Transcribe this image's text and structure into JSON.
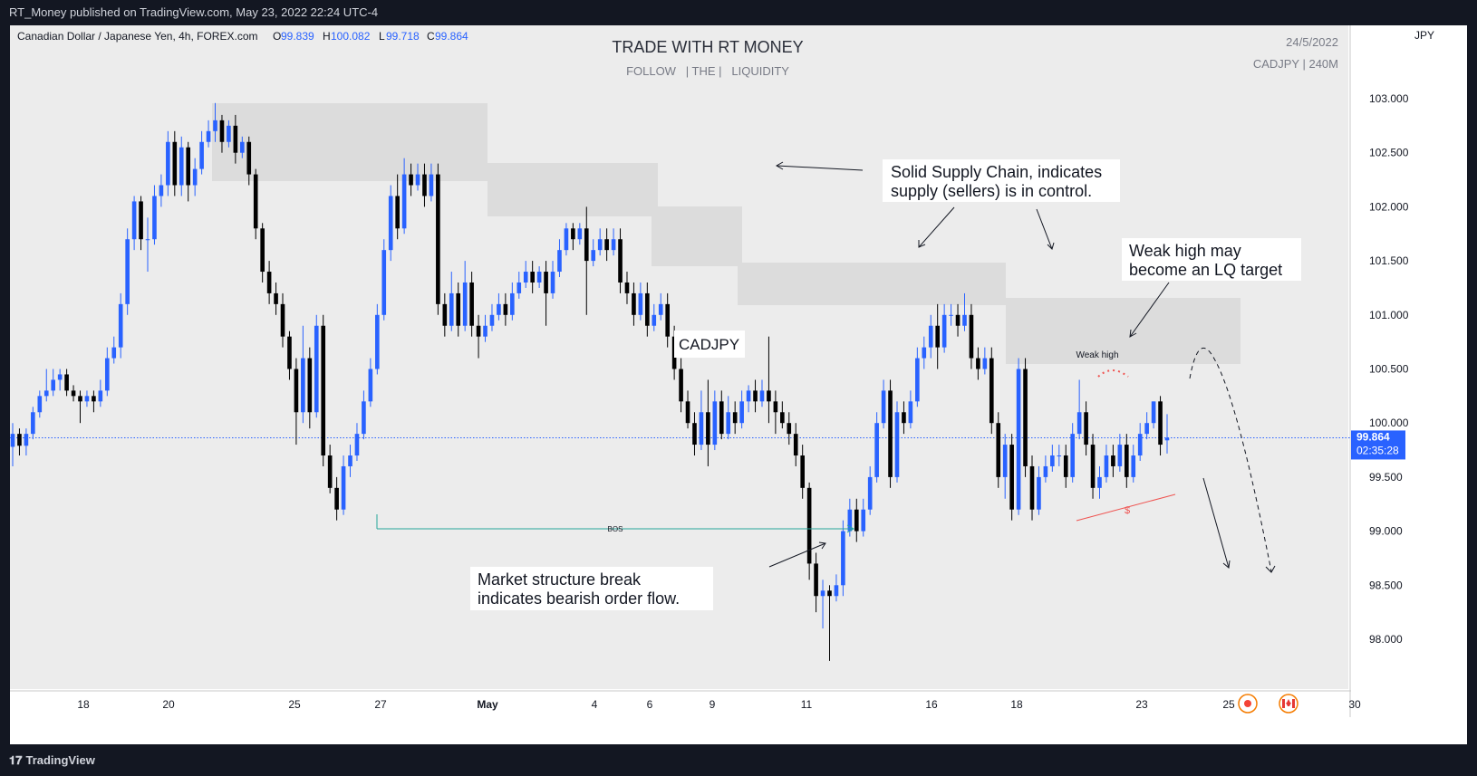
{
  "header": {
    "published": "RT_Money published on TradingView.com, May 23, 2022 22:24 UTC-4"
  },
  "footer": {
    "brand": "TradingView",
    "brand_icon": "tradingview-logo-icon"
  },
  "symbol_info": {
    "title": "Canadian Dollar / Japanese Yen, 4h, FOREX.com",
    "o_label": "O",
    "o_value": "99.839",
    "h_label": "H",
    "h_value": "100.082",
    "l_label": "L",
    "l_value": "99.718",
    "c_label": "C",
    "c_value": "99.864"
  },
  "watermark": {
    "title": "TRADE WITH RT MONEY",
    "subtitle": "FOLLOW   | THE |   LIQUIDITY",
    "date": "24/5/2022",
    "symbol": "CADJPY | 240M"
  },
  "price_tag": {
    "price": "99.864",
    "countdown": "02:35:28"
  },
  "annotations": {
    "supply_note_line1": "Solid Supply Chain, indicates",
    "supply_note_line2": "supply (sellers) is in control.",
    "weak_note_line1": "Weak high may",
    "weak_note_line2": "become an LQ target",
    "ms_note_line1": "Market structure break",
    "ms_note_line2": "indicates bearish order flow.",
    "pair_label": "CADJPY",
    "weak_high": "Weak high",
    "bos": "BOS",
    "dollar": "$"
  },
  "colors": {
    "up": "#2962ff",
    "down": "#000000",
    "zone": "#dcdcdc",
    "plot_bg": "#ececec",
    "price_line": "#2962ff",
    "bos_line": "#26a69a",
    "liquidity": "#ef5350"
  },
  "icons": {
    "event_1": "record-icon",
    "event_2": "canada-flag-icon"
  },
  "chart_data": {
    "type": "candlestick",
    "y_axis_label": "JPY",
    "y_range": [
      97.6,
      103.6
    ],
    "y_ticks": [
      "103.000",
      "102.500",
      "102.000",
      "101.500",
      "101.000",
      "100.500",
      "100.000",
      "99.500",
      "99.000",
      "98.500",
      "98.000"
    ],
    "x_ticks": [
      "18",
      "20",
      "25",
      "27",
      "May",
      "4",
      "6",
      "9",
      "11",
      "16",
      "18",
      "23",
      "25",
      "30"
    ],
    "current_price": 99.864,
    "candles": [
      [
        99.78,
        99.9,
        99.6,
        100.0
      ],
      [
        99.9,
        99.79,
        99.7,
        99.95
      ],
      [
        99.79,
        99.9,
        99.7,
        99.95
      ],
      [
        99.9,
        100.1,
        99.85,
        100.15
      ],
      [
        100.1,
        100.25,
        100.05,
        100.3
      ],
      [
        100.25,
        100.3,
        100.2,
        100.5
      ],
      [
        100.3,
        100.4,
        100.25,
        100.5
      ],
      [
        100.4,
        100.45,
        100.3,
        100.5
      ],
      [
        100.45,
        100.3,
        100.25,
        100.5
      ],
      [
        100.3,
        100.25,
        100.2,
        100.35
      ],
      [
        100.25,
        100.2,
        100.0,
        100.3
      ],
      [
        100.2,
        100.25,
        100.15,
        100.3
      ],
      [
        100.25,
        100.2,
        100.1,
        100.3
      ],
      [
        100.2,
        100.3,
        100.15,
        100.4
      ],
      [
        100.3,
        100.6,
        100.25,
        100.7
      ],
      [
        100.6,
        100.7,
        100.55,
        100.8
      ],
      [
        100.7,
        101.1,
        100.6,
        101.2
      ],
      [
        101.1,
        101.7,
        101.0,
        101.8
      ],
      [
        101.7,
        102.05,
        101.6,
        102.1
      ],
      [
        102.05,
        101.7,
        101.6,
        102.1
      ],
      [
        101.7,
        101.7,
        101.4,
        101.9
      ],
      [
        101.7,
        102.1,
        101.65,
        102.2
      ],
      [
        102.1,
        102.2,
        102.0,
        102.3
      ],
      [
        102.2,
        102.6,
        102.1,
        102.7
      ],
      [
        102.6,
        102.2,
        102.1,
        102.7
      ],
      [
        102.2,
        102.55,
        102.1,
        102.65
      ],
      [
        102.55,
        102.2,
        102.05,
        102.6
      ],
      [
        102.2,
        102.35,
        102.1,
        102.45
      ],
      [
        102.35,
        102.6,
        102.3,
        102.7
      ],
      [
        102.6,
        102.7,
        102.55,
        102.8
      ],
      [
        102.7,
        102.8,
        102.6,
        102.96
      ],
      [
        102.8,
        102.6,
        102.5,
        102.85
      ],
      [
        102.6,
        102.75,
        102.55,
        102.8
      ],
      [
        102.75,
        102.5,
        102.4,
        102.85
      ],
      [
        102.5,
        102.6,
        102.45,
        102.65
      ],
      [
        102.6,
        102.3,
        102.2,
        102.65
      ],
      [
        102.3,
        101.8,
        101.7,
        102.35
      ],
      [
        101.8,
        101.4,
        101.3,
        101.85
      ],
      [
        101.4,
        101.2,
        101.1,
        101.5
      ],
      [
        101.2,
        101.1,
        101.0,
        101.3
      ],
      [
        101.1,
        100.8,
        100.7,
        101.2
      ],
      [
        100.8,
        100.5,
        100.4,
        100.85
      ],
      [
        100.5,
        100.1,
        99.8,
        100.6
      ],
      [
        100.1,
        100.6,
        100.0,
        100.9
      ],
      [
        100.6,
        100.1,
        99.95,
        100.7
      ],
      [
        100.1,
        100.9,
        100.05,
        101.0
      ],
      [
        100.9,
        99.7,
        99.6,
        101.0
      ],
      [
        99.7,
        99.4,
        99.35,
        99.8
      ],
      [
        99.4,
        99.2,
        99.1,
        99.5
      ],
      [
        99.2,
        99.6,
        99.15,
        99.7
      ],
      [
        99.6,
        99.7,
        99.5,
        99.8
      ],
      [
        99.7,
        99.9,
        99.65,
        100.0
      ],
      [
        99.9,
        100.2,
        99.85,
        100.3
      ],
      [
        100.2,
        100.5,
        100.15,
        100.6
      ],
      [
        100.5,
        101.0,
        100.45,
        101.1
      ],
      [
        101.0,
        101.6,
        100.95,
        101.7
      ],
      [
        101.6,
        102.1,
        101.5,
        102.2
      ],
      [
        102.1,
        101.8,
        101.7,
        102.3
      ],
      [
        101.8,
        102.3,
        101.75,
        102.45
      ],
      [
        102.3,
        102.2,
        102.1,
        102.4
      ],
      [
        102.2,
        102.3,
        102.15,
        102.4
      ],
      [
        102.3,
        102.1,
        102.0,
        102.4
      ],
      [
        102.1,
        102.3,
        102.05,
        102.4
      ],
      [
        102.3,
        101.1,
        101.0,
        102.4
      ],
      [
        101.1,
        100.9,
        100.8,
        101.2
      ],
      [
        100.9,
        101.2,
        100.85,
        101.4
      ],
      [
        101.2,
        100.9,
        100.8,
        101.3
      ],
      [
        100.9,
        101.3,
        100.85,
        101.5
      ],
      [
        101.3,
        100.9,
        100.8,
        101.4
      ],
      [
        100.9,
        100.8,
        100.6,
        101.0
      ],
      [
        100.8,
        100.9,
        100.75,
        101.0
      ],
      [
        100.9,
        101.0,
        100.85,
        101.1
      ],
      [
        101.0,
        101.1,
        100.95,
        101.2
      ],
      [
        101.1,
        101.0,
        100.9,
        101.2
      ],
      [
        101.0,
        101.2,
        100.95,
        101.3
      ],
      [
        101.2,
        101.3,
        101.15,
        101.4
      ],
      [
        101.3,
        101.4,
        101.25,
        101.5
      ],
      [
        101.4,
        101.3,
        101.2,
        101.5
      ],
      [
        101.3,
        101.4,
        101.25,
        101.45
      ],
      [
        101.4,
        101.2,
        100.9,
        101.5
      ],
      [
        101.2,
        101.4,
        101.15,
        101.5
      ],
      [
        101.4,
        101.6,
        101.35,
        101.7
      ],
      [
        101.6,
        101.8,
        101.55,
        101.85
      ],
      [
        101.8,
        101.7,
        101.6,
        101.85
      ],
      [
        101.7,
        101.8,
        101.65,
        101.85
      ],
      [
        101.8,
        101.5,
        101.0,
        102.0
      ],
      [
        101.5,
        101.6,
        101.45,
        101.7
      ],
      [
        101.6,
        101.7,
        101.55,
        101.8
      ],
      [
        101.7,
        101.6,
        101.5,
        101.8
      ],
      [
        101.6,
        101.7,
        101.55,
        101.8
      ],
      [
        101.7,
        101.3,
        101.2,
        101.8
      ],
      [
        101.3,
        101.2,
        101.1,
        101.4
      ],
      [
        101.2,
        101.0,
        100.9,
        101.3
      ],
      [
        101.0,
        101.2,
        100.95,
        101.3
      ],
      [
        101.2,
        100.9,
        100.8,
        101.3
      ],
      [
        100.9,
        101.0,
        100.85,
        101.1
      ],
      [
        101.0,
        101.1,
        100.95,
        101.2
      ],
      [
        101.1,
        100.8,
        100.7,
        101.2
      ],
      [
        100.8,
        100.5,
        100.4,
        100.9
      ],
      [
        100.5,
        100.2,
        100.1,
        100.6
      ],
      [
        100.2,
        100.0,
        99.95,
        100.3
      ],
      [
        100.0,
        99.8,
        99.7,
        100.1
      ],
      [
        99.8,
        100.1,
        99.75,
        100.3
      ],
      [
        100.1,
        99.8,
        99.6,
        100.4
      ],
      [
        99.8,
        100.2,
        99.75,
        100.3
      ],
      [
        100.2,
        99.9,
        99.85,
        100.3
      ],
      [
        99.9,
        100.1,
        99.85,
        100.25
      ],
      [
        100.1,
        100.0,
        99.9,
        100.2
      ],
      [
        100.0,
        100.2,
        99.95,
        100.3
      ],
      [
        100.2,
        100.3,
        100.1,
        100.35
      ],
      [
        100.3,
        100.2,
        100.1,
        100.4
      ],
      [
        100.2,
        100.3,
        100.15,
        100.4
      ],
      [
        100.3,
        100.2,
        100.0,
        100.8
      ],
      [
        100.2,
        100.1,
        99.9,
        100.3
      ],
      [
        100.1,
        100.0,
        99.95,
        100.2
      ],
      [
        100.0,
        99.9,
        99.8,
        100.1
      ],
      [
        99.9,
        99.7,
        99.6,
        100.0
      ],
      [
        99.7,
        99.4,
        99.3,
        99.8
      ],
      [
        99.4,
        98.7,
        98.55,
        99.45
      ],
      [
        98.7,
        98.4,
        98.25,
        98.8
      ],
      [
        98.4,
        98.45,
        98.1,
        98.55
      ],
      [
        98.45,
        98.4,
        97.8,
        98.5
      ],
      [
        98.4,
        98.5,
        98.35,
        98.6
      ],
      [
        98.5,
        99.0,
        98.4,
        99.1
      ],
      [
        99.0,
        99.2,
        98.95,
        99.3
      ],
      [
        99.2,
        99.0,
        98.9,
        99.3
      ],
      [
        99.0,
        99.2,
        98.95,
        99.3
      ],
      [
        99.2,
        99.5,
        99.15,
        99.6
      ],
      [
        99.5,
        100.0,
        99.45,
        100.1
      ],
      [
        100.0,
        100.3,
        99.95,
        100.4
      ],
      [
        100.3,
        99.5,
        99.4,
        100.4
      ],
      [
        99.5,
        100.1,
        99.45,
        100.2
      ],
      [
        100.1,
        100.0,
        99.9,
        100.2
      ],
      [
        100.0,
        100.2,
        99.95,
        100.3
      ],
      [
        100.2,
        100.6,
        100.15,
        100.7
      ],
      [
        100.6,
        100.7,
        100.5,
        100.8
      ],
      [
        100.7,
        100.9,
        100.6,
        101.0
      ],
      [
        100.9,
        100.7,
        100.5,
        101.1
      ],
      [
        100.7,
        101.0,
        100.65,
        101.1
      ],
      [
        101.0,
        101.0,
        100.9,
        101.1
      ],
      [
        101.0,
        100.9,
        100.8,
        101.1
      ],
      [
        100.9,
        101.0,
        100.85,
        101.2
      ],
      [
        101.0,
        100.6,
        100.5,
        101.1
      ],
      [
        100.6,
        100.5,
        100.4,
        100.7
      ],
      [
        100.5,
        100.6,
        100.45,
        100.7
      ],
      [
        100.6,
        100.0,
        99.9,
        100.7
      ],
      [
        100.0,
        99.5,
        99.4,
        100.1
      ],
      [
        99.5,
        99.8,
        99.3,
        99.9
      ],
      [
        99.8,
        99.2,
        99.1,
        99.9
      ],
      [
        99.2,
        100.5,
        99.15,
        100.6
      ],
      [
        100.5,
        99.6,
        99.5,
        100.6
      ],
      [
        99.6,
        99.2,
        99.1,
        99.7
      ],
      [
        99.2,
        99.5,
        99.15,
        99.6
      ],
      [
        99.5,
        99.6,
        99.45,
        99.7
      ],
      [
        99.6,
        99.7,
        99.55,
        99.8
      ],
      [
        99.7,
        99.7,
        99.6,
        99.8
      ],
      [
        99.7,
        99.5,
        99.4,
        99.8
      ],
      [
        99.5,
        99.9,
        99.45,
        100.0
      ],
      [
        99.9,
        100.1,
        99.85,
        100.4
      ],
      [
        100.1,
        99.8,
        99.7,
        100.2
      ],
      [
        99.8,
        99.4,
        99.3,
        99.9
      ],
      [
        99.4,
        99.5,
        99.3,
        99.6
      ],
      [
        99.5,
        99.7,
        99.45,
        99.8
      ],
      [
        99.7,
        99.6,
        99.5,
        99.8
      ],
      [
        99.6,
        99.8,
        99.55,
        99.9
      ],
      [
        99.8,
        99.5,
        99.4,
        99.9
      ],
      [
        99.5,
        99.7,
        99.45,
        99.8
      ],
      [
        99.7,
        99.9,
        99.65,
        100.0
      ],
      [
        99.9,
        100.0,
        99.85,
        100.1
      ],
      [
        100.0,
        100.2,
        99.95,
        100.2
      ],
      [
        100.2,
        99.8,
        99.7,
        100.25
      ],
      [
        99.84,
        99.864,
        99.718,
        100.082
      ]
    ]
  }
}
